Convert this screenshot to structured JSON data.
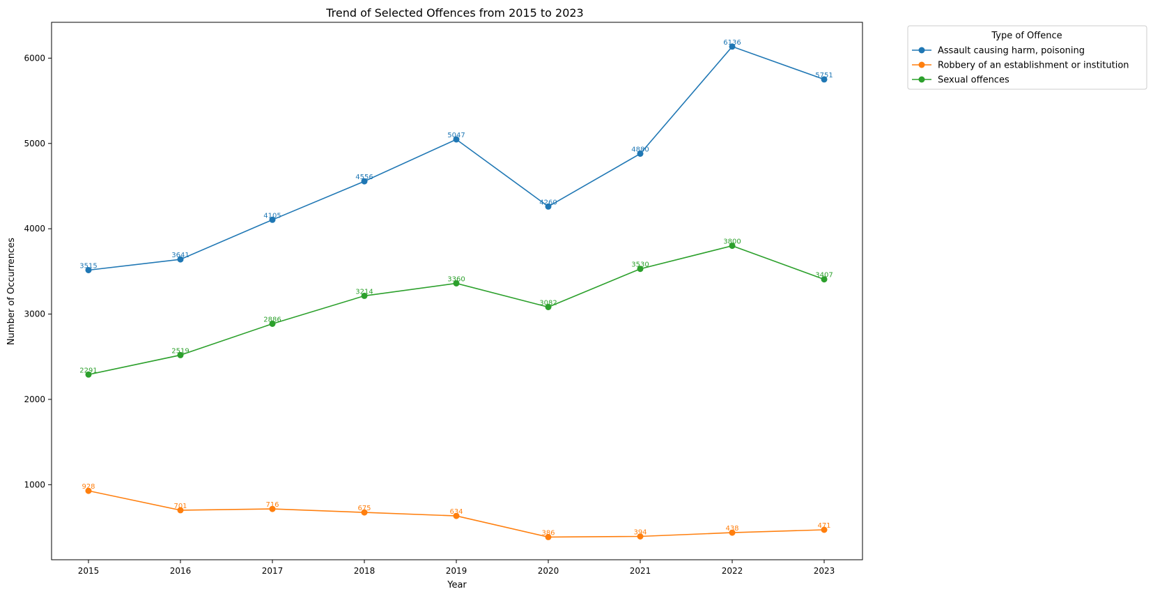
{
  "chart_data": {
    "type": "line",
    "title": "Trend of Selected Offences from 2015 to 2023",
    "xlabel": "Year",
    "ylabel": "Number of Occurrences",
    "x": [
      2015,
      2016,
      2017,
      2018,
      2019,
      2020,
      2021,
      2022,
      2023
    ],
    "ylim": [
      120,
      6420
    ],
    "yticks": [
      1000,
      2000,
      3000,
      4000,
      5000,
      6000
    ],
    "grid": false,
    "legend": {
      "title": "Type of Offence",
      "placement": "outside-top-right"
    },
    "series": [
      {
        "name": "Assault causing harm, poisoning",
        "color": "#1f77b4",
        "values": [
          3515,
          3641,
          4105,
          4556,
          5047,
          4260,
          4880,
          6136,
          5751
        ]
      },
      {
        "name": "Robbery of an establishment or institution",
        "color": "#ff7f0e",
        "values": [
          928,
          701,
          716,
          675,
          634,
          386,
          394,
          438,
          471
        ]
      },
      {
        "name": "Sexual offences",
        "color": "#2ca02c",
        "values": [
          2291,
          2519,
          2886,
          3214,
          3360,
          3082,
          3530,
          3800,
          3407
        ]
      }
    ]
  }
}
